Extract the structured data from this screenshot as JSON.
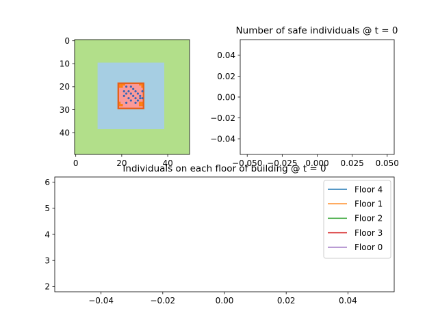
{
  "chart_data": [
    {
      "type": "heatmap",
      "panel": "grid",
      "title": "",
      "x_ticks": [
        0,
        20,
        40
      ],
      "y_ticks": [
        0,
        10,
        20,
        30,
        40
      ],
      "xlim": [
        -0.5,
        49.5
      ],
      "ylim": [
        49.5,
        -0.5
      ],
      "layers": [
        {
          "name": "outer",
          "extent": [
            0,
            50,
            0,
            50
          ],
          "color": "#b2df8a"
        },
        {
          "name": "middle",
          "extent": [
            10,
            39,
            10,
            39
          ],
          "color": "#a6cee3"
        },
        {
          "name": "building-floor",
          "extent": [
            19,
            30,
            19,
            30
          ],
          "color": "#fb9a99"
        },
        {
          "name": "building-frame",
          "extent": [
            19,
            30,
            19,
            30
          ],
          "color": "#e7601b"
        }
      ],
      "orange_cells": [
        [
          19,
          19
        ],
        [
          20,
          19
        ],
        [
          21,
          19
        ],
        [
          19,
          20
        ],
        [
          20,
          20
        ],
        [
          28,
          19
        ],
        [
          29,
          19
        ],
        [
          29,
          20
        ],
        [
          19,
          27
        ],
        [
          19,
          28
        ],
        [
          20,
          28
        ],
        [
          28,
          28
        ],
        [
          29,
          28
        ],
        [
          29,
          27
        ],
        [
          28,
          27
        ]
      ],
      "points_color": "#3a66b5",
      "points": [
        [
          22,
          20
        ],
        [
          24,
          20
        ],
        [
          25,
          21
        ],
        [
          21,
          22
        ],
        [
          23,
          22
        ],
        [
          26,
          22
        ],
        [
          22,
          23
        ],
        [
          24,
          23
        ],
        [
          27,
          23
        ],
        [
          25,
          24
        ],
        [
          28,
          24
        ],
        [
          23,
          25
        ],
        [
          26,
          25
        ],
        [
          29,
          25
        ],
        [
          24,
          26
        ],
        [
          27,
          26
        ],
        [
          28,
          25
        ],
        [
          26,
          27
        ],
        [
          21,
          24
        ],
        [
          22,
          27
        ],
        [
          29,
          22
        ]
      ]
    },
    {
      "type": "line",
      "panel": "safe",
      "title": "Number of safe individuals @ t = 0",
      "x_tick_labels": [
        "−0.050",
        "−0.025",
        "0.000",
        "0.025",
        "0.050"
      ],
      "x_ticks": [
        -0.05,
        -0.025,
        0.0,
        0.025,
        0.05
      ],
      "y_tick_labels": [
        "−0.04",
        "−0.02",
        "0.00",
        "0.02",
        "0.04"
      ],
      "y_ticks": [
        -0.04,
        -0.02,
        0.0,
        0.02,
        0.04
      ],
      "xlim": [
        -0.055,
        0.055
      ],
      "ylim": [
        -0.055,
        0.055
      ],
      "series": []
    },
    {
      "type": "line",
      "panel": "floors",
      "title": "Individuals on each floor of building @ t = 0",
      "x_tick_labels": [
        "−0.04",
        "−0.02",
        "0.00",
        "0.02",
        "0.04"
      ],
      "x_ticks": [
        -0.04,
        -0.02,
        0.0,
        0.02,
        0.04
      ],
      "y_tick_labels": [
        "2",
        "3",
        "4",
        "5",
        "6"
      ],
      "y_ticks": [
        2,
        3,
        4,
        5,
        6
      ],
      "xlim": [
        -0.055,
        0.055
      ],
      "ylim": [
        1.8,
        6.2
      ],
      "legend_position": "top-right",
      "series": [
        {
          "name": "Floor 4",
          "color": "#1f77b4",
          "values": []
        },
        {
          "name": "Floor 1",
          "color": "#ff7f0e",
          "values": []
        },
        {
          "name": "Floor 2",
          "color": "#2ca02c",
          "values": []
        },
        {
          "name": "Floor 3",
          "color": "#d62728",
          "values": []
        },
        {
          "name": "Floor 0",
          "color": "#9467bd",
          "values": []
        }
      ]
    }
  ]
}
